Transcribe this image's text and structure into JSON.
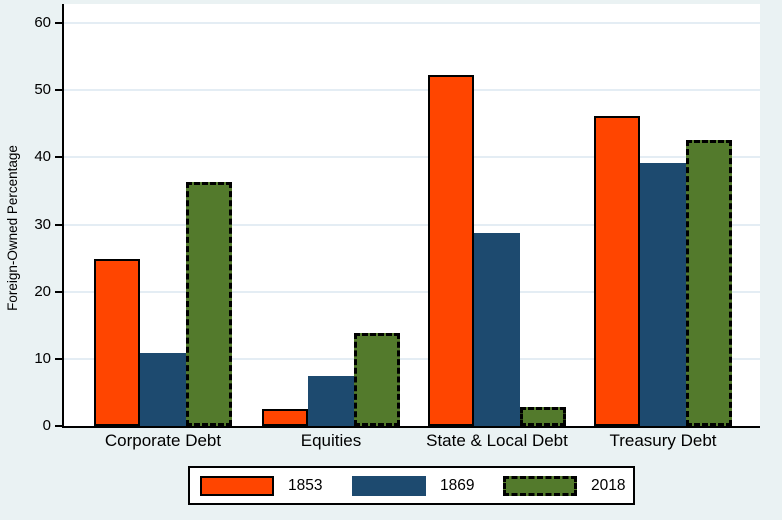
{
  "page": {
    "background_color": "#EAF2F3",
    "plot_background_color": "#FFFFFF",
    "gridline_color": "#E4EDF4",
    "axis_color": "#000000"
  },
  "chart_data": {
    "type": "bar",
    "title": "",
    "xlabel": "",
    "ylabel": "Foreign-Owned Percentage",
    "ylim": [
      0,
      63
    ],
    "yticks": [
      0,
      10,
      20,
      30,
      40,
      50,
      60
    ],
    "grid": true,
    "legend_position": "bottom",
    "categories": [
      "Corporate Debt",
      "Equities",
      "State & Local Debt",
      "Treasury Debt"
    ],
    "series": [
      {
        "name": "1853",
        "color": "#FF4500",
        "outline": "solid",
        "values": [
          24.9,
          2.5,
          52.3,
          46.2
        ]
      },
      {
        "name": "1869",
        "color": "#1D4A6F",
        "outline": "none",
        "values": [
          10.9,
          7.5,
          28.7,
          39.2
        ]
      },
      {
        "name": "2018",
        "color": "#537A2C",
        "outline": "dashed",
        "values": [
          36.4,
          13.9,
          2.9,
          42.6
        ]
      }
    ]
  }
}
